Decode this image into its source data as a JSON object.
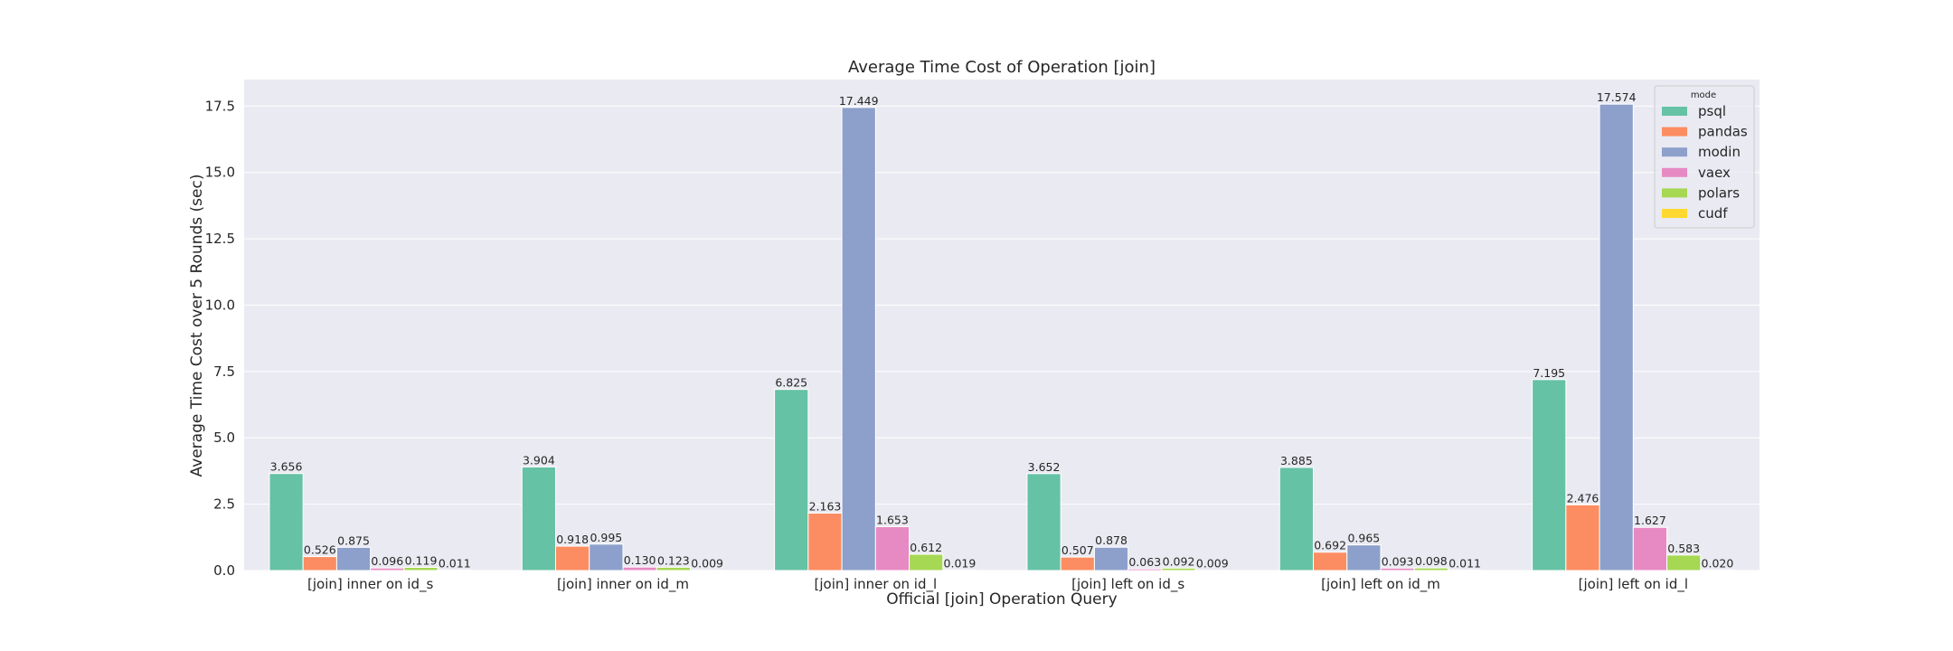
{
  "chart_data": {
    "type": "bar",
    "title": "Average Time Cost of Operation [join]",
    "xlabel": "Official [join] Operation Query",
    "ylabel": "Average Time Cost over 5 Rounds (sec)",
    "ylim": [
      0,
      18.5
    ],
    "yticks": [
      "0.0",
      "2.5",
      "5.0",
      "7.5",
      "10.0",
      "12.5",
      "15.0",
      "17.5"
    ],
    "grid": true,
    "legend": {
      "title": "mode",
      "placement": "top-right"
    },
    "categories": [
      "[join] inner on id_s",
      "[join] inner on id_m",
      "[join] inner on id_l",
      "[join] left on id_s",
      "[join] left on id_m",
      "[join] left on id_l"
    ],
    "series": [
      {
        "name": "psql",
        "color": "#66c2a5",
        "values": [
          3.656,
          3.904,
          6.825,
          3.652,
          3.885,
          7.195
        ],
        "labels": [
          "3.656",
          "3.904",
          "6.825",
          "3.652",
          "3.885",
          "7.195"
        ]
      },
      {
        "name": "pandas",
        "color": "#fc8d62",
        "values": [
          0.526,
          0.918,
          2.163,
          0.507,
          0.692,
          2.476
        ],
        "labels": [
          "0.526",
          "0.918",
          "2.163",
          "0.507",
          "0.692",
          "2.476"
        ]
      },
      {
        "name": "modin",
        "color": "#8da0cb",
        "values": [
          0.875,
          0.995,
          17.449,
          0.878,
          0.965,
          17.574
        ],
        "labels": [
          "0.875",
          "0.995",
          "17.449",
          "0.878",
          "0.965",
          "17.574"
        ]
      },
      {
        "name": "vaex",
        "color": "#e78ac3",
        "values": [
          0.096,
          0.13,
          1.653,
          0.063,
          0.093,
          1.627
        ],
        "labels": [
          "0.096",
          "0.130",
          "1.653",
          "0.063",
          "0.093",
          "1.627"
        ]
      },
      {
        "name": "polars",
        "color": "#a6d854",
        "values": [
          0.119,
          0.123,
          0.612,
          0.092,
          0.098,
          0.583
        ],
        "labels": [
          "0.119",
          "0.123",
          "0.612",
          "0.092",
          "0.098",
          "0.583"
        ]
      },
      {
        "name": "cudf",
        "color": "#ffd92f",
        "values": [
          0.011,
          0.009,
          0.019,
          0.009,
          0.011,
          0.02
        ],
        "labels": [
          "0.011",
          "0.009",
          "0.019",
          "0.009",
          "0.011",
          "0.020"
        ]
      }
    ]
  },
  "colors": {
    "plot_background": "#eaeaf2",
    "grid": "#ffffff",
    "text": "#262626"
  }
}
